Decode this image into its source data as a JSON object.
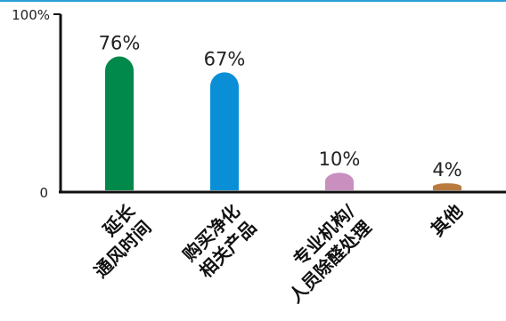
{
  "chart_data": {
    "type": "bar",
    "categories": [
      [
        "延长",
        "通风时间"
      ],
      [
        "购买净化",
        "相关产品"
      ],
      [
        "专业机构/",
        "人员除醛处理"
      ],
      [
        "其他"
      ]
    ],
    "values": [
      76,
      67,
      10,
      4
    ],
    "data_labels": [
      "76%",
      "67%",
      "10%",
      "4%"
    ],
    "colors": [
      "#00894a",
      "#0a8fd6",
      "#c98fbf",
      "#b97a3e"
    ],
    "ylim": [
      0,
      100
    ],
    "ytick_labels": [
      "0",
      "100%"
    ],
    "title": "",
    "xlabel": "",
    "ylabel": "",
    "grid": false,
    "accent_color": "#2a9fd8"
  }
}
